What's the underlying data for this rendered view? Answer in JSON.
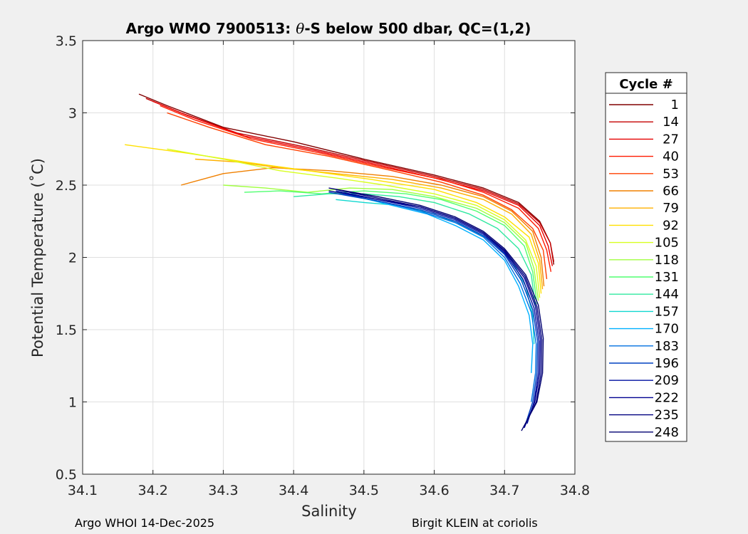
{
  "chart_data": {
    "type": "line",
    "title_prefix": "Argo WMO 7900513: ",
    "title_symbol": "θ",
    "title_suffix": "-S below 500 dbar,  QC=(1,2)",
    "xlabel": "Salinity",
    "ylabel": "Potential Temperature (˚C)",
    "xlim": [
      34.1,
      34.8
    ],
    "ylim": [
      0.5,
      3.5
    ],
    "xticks": [
      "34.1",
      "34.2",
      "34.3",
      "34.4",
      "34.5",
      "34.6",
      "34.7",
      "34.8"
    ],
    "yticks": [
      "0.5",
      "1",
      "1.5",
      "2",
      "2.5",
      "3",
      "3.5"
    ],
    "grid": true,
    "legend_title": "Cycle #",
    "legend_position": "right",
    "cycles": [
      "1",
      "14",
      "27",
      "40",
      "53",
      "66",
      "79",
      "92",
      "105",
      "118",
      "131",
      "144",
      "157",
      "170",
      "183",
      "196",
      "209",
      "222",
      "235",
      "248"
    ],
    "colors": [
      "#800000",
      "#c40000",
      "#e60000",
      "#ff1a00",
      "#ff4000",
      "#f08000",
      "#ffb000",
      "#ffe000",
      "#d8ff20",
      "#a0ff40",
      "#50ff70",
      "#30e8a0",
      "#10d8d0",
      "#00b0ff",
      "#0070e0",
      "#0040c0",
      "#0010a0",
      "#000090",
      "#000080",
      "#000070"
    ],
    "series": [
      {
        "name": "1",
        "x": [
          34.18,
          34.22,
          34.3,
          34.4,
          34.5,
          34.6,
          34.67,
          34.72,
          34.75,
          34.765,
          34.77
        ],
        "y": [
          3.13,
          3.05,
          2.9,
          2.8,
          2.68,
          2.57,
          2.48,
          2.38,
          2.25,
          2.1,
          1.95
        ]
      },
      {
        "name": "14",
        "x": [
          34.19,
          34.24,
          34.32,
          34.42,
          34.52,
          34.6,
          34.67,
          34.72,
          34.75,
          34.765,
          34.77
        ],
        "y": [
          3.1,
          3.0,
          2.86,
          2.76,
          2.65,
          2.56,
          2.47,
          2.37,
          2.24,
          2.1,
          1.97
        ]
      },
      {
        "name": "27",
        "x": [
          34.2,
          34.25,
          34.33,
          34.43,
          34.52,
          34.6,
          34.67,
          34.72,
          34.75,
          34.762,
          34.768
        ],
        "y": [
          3.08,
          2.98,
          2.84,
          2.74,
          2.64,
          2.55,
          2.46,
          2.36,
          2.22,
          2.08,
          1.94
        ]
      },
      {
        "name": "40",
        "x": [
          34.21,
          34.26,
          34.34,
          34.44,
          34.53,
          34.61,
          34.67,
          34.72,
          34.748,
          34.76,
          34.766
        ],
        "y": [
          3.05,
          2.95,
          2.82,
          2.72,
          2.62,
          2.54,
          2.45,
          2.34,
          2.2,
          2.05,
          1.9
        ]
      },
      {
        "name": "53",
        "x": [
          34.22,
          34.28,
          34.36,
          34.45,
          34.54,
          34.61,
          34.67,
          34.71,
          34.74,
          34.755,
          34.76
        ],
        "y": [
          3.0,
          2.9,
          2.78,
          2.7,
          2.6,
          2.52,
          2.43,
          2.33,
          2.2,
          2.05,
          1.85
        ]
      },
      {
        "name": "66",
        "x": [
          34.24,
          34.3,
          34.37,
          34.45,
          34.54,
          34.61,
          34.67,
          34.71,
          34.74,
          34.752,
          34.756
        ],
        "y": [
          2.5,
          2.58,
          2.62,
          2.6,
          2.56,
          2.5,
          2.42,
          2.32,
          2.18,
          2.0,
          1.8
        ]
      },
      {
        "name": "79",
        "x": [
          34.26,
          34.32,
          34.38,
          34.46,
          34.54,
          34.61,
          34.67,
          34.71,
          34.738,
          34.75,
          34.754
        ],
        "y": [
          2.68,
          2.66,
          2.62,
          2.58,
          2.54,
          2.48,
          2.4,
          2.3,
          2.16,
          1.98,
          1.78
        ]
      },
      {
        "name": "92",
        "x": [
          34.16,
          34.25,
          34.33,
          34.42,
          34.51,
          34.6,
          34.66,
          34.7,
          34.735,
          34.748,
          34.752
        ],
        "y": [
          2.78,
          2.72,
          2.66,
          2.6,
          2.54,
          2.47,
          2.38,
          2.28,
          2.14,
          1.96,
          1.75
        ]
      },
      {
        "name": "105",
        "x": [
          34.22,
          34.3,
          34.38,
          34.46,
          34.53,
          34.6,
          34.66,
          34.7,
          34.73,
          34.745,
          34.75
        ],
        "y": [
          2.75,
          2.68,
          2.6,
          2.55,
          2.5,
          2.44,
          2.36,
          2.26,
          2.12,
          1.94,
          1.72
        ]
      },
      {
        "name": "118",
        "x": [
          34.3,
          34.36,
          34.42,
          34.48,
          34.54,
          34.6,
          34.66,
          34.7,
          34.73,
          34.742,
          34.748
        ],
        "y": [
          2.5,
          2.48,
          2.45,
          2.48,
          2.47,
          2.42,
          2.34,
          2.24,
          2.1,
          1.92,
          1.7
        ]
      },
      {
        "name": "131",
        "x": [
          34.33,
          34.38,
          34.44,
          34.5,
          34.56,
          34.61,
          34.66,
          34.7,
          34.728,
          34.74,
          34.746
        ],
        "y": [
          2.45,
          2.46,
          2.44,
          2.46,
          2.44,
          2.4,
          2.32,
          2.22,
          2.08,
          1.9,
          1.68
        ]
      },
      {
        "name": "144",
        "x": [
          34.4,
          34.45,
          34.5,
          34.55,
          34.6,
          34.65,
          34.69,
          34.72,
          34.738,
          34.744
        ],
        "y": [
          2.42,
          2.44,
          2.44,
          2.42,
          2.38,
          2.3,
          2.2,
          2.06,
          1.88,
          1.65
        ]
      },
      {
        "name": "157",
        "x": [
          34.46,
          34.5,
          34.55,
          34.6,
          34.64,
          34.68,
          34.71,
          34.73,
          34.74,
          34.742
        ],
        "y": [
          2.4,
          2.38,
          2.36,
          2.3,
          2.22,
          2.12,
          1.98,
          1.8,
          1.6,
          1.4
        ]
      },
      {
        "name": "170",
        "x": [
          34.49,
          34.54,
          34.59,
          34.63,
          34.67,
          34.7,
          34.72,
          34.735,
          34.74,
          34.738
        ],
        "y": [
          2.42,
          2.36,
          2.3,
          2.22,
          2.12,
          1.98,
          1.8,
          1.6,
          1.4,
          1.2
        ]
      },
      {
        "name": "183",
        "x": [
          34.47,
          34.53,
          34.58,
          34.63,
          34.67,
          34.7,
          34.722,
          34.738,
          34.745,
          34.744,
          34.738
        ],
        "y": [
          2.44,
          2.38,
          2.32,
          2.24,
          2.14,
          2.0,
          1.82,
          1.62,
          1.4,
          1.2,
          1.0
        ]
      },
      {
        "name": "196",
        "x": [
          34.45,
          34.52,
          34.58,
          34.63,
          34.67,
          34.7,
          34.724,
          34.74,
          34.747,
          34.746,
          34.74,
          34.73
        ],
        "y": [
          2.45,
          2.39,
          2.33,
          2.25,
          2.15,
          2.02,
          1.84,
          1.64,
          1.42,
          1.2,
          1.0,
          0.85
        ]
      },
      {
        "name": "209",
        "x": [
          34.46,
          34.52,
          34.58,
          34.63,
          34.67,
          34.7,
          34.726,
          34.742,
          34.749,
          34.748,
          34.742,
          34.732
        ],
        "y": [
          2.46,
          2.4,
          2.34,
          2.26,
          2.16,
          2.03,
          1.85,
          1.65,
          1.42,
          1.2,
          1.0,
          0.85
        ]
      },
      {
        "name": "222",
        "x": [
          34.45,
          34.52,
          34.58,
          34.63,
          34.67,
          34.7,
          34.728,
          34.744,
          34.751,
          34.75,
          34.743,
          34.728
        ],
        "y": [
          2.46,
          2.4,
          2.35,
          2.27,
          2.17,
          2.04,
          1.86,
          1.66,
          1.43,
          1.2,
          1.0,
          0.82
        ]
      },
      {
        "name": "235",
        "x": [
          34.46,
          34.52,
          34.58,
          34.63,
          34.67,
          34.7,
          34.729,
          34.746,
          34.753,
          34.752,
          34.745,
          34.73
        ],
        "y": [
          2.47,
          2.41,
          2.35,
          2.27,
          2.17,
          2.05,
          1.87,
          1.66,
          1.43,
          1.2,
          1.0,
          0.85
        ]
      },
      {
        "name": "248",
        "x": [
          34.45,
          34.52,
          34.58,
          34.63,
          34.67,
          34.7,
          34.73,
          34.748,
          34.755,
          34.754,
          34.746,
          34.724
        ],
        "y": [
          2.48,
          2.42,
          2.36,
          2.28,
          2.18,
          2.06,
          1.88,
          1.67,
          1.44,
          1.2,
          1.0,
          0.8
        ]
      }
    ]
  },
  "footer": {
    "left": "Argo WHOI 14-Dec-2025",
    "right": "Birgit KLEIN at coriolis"
  }
}
